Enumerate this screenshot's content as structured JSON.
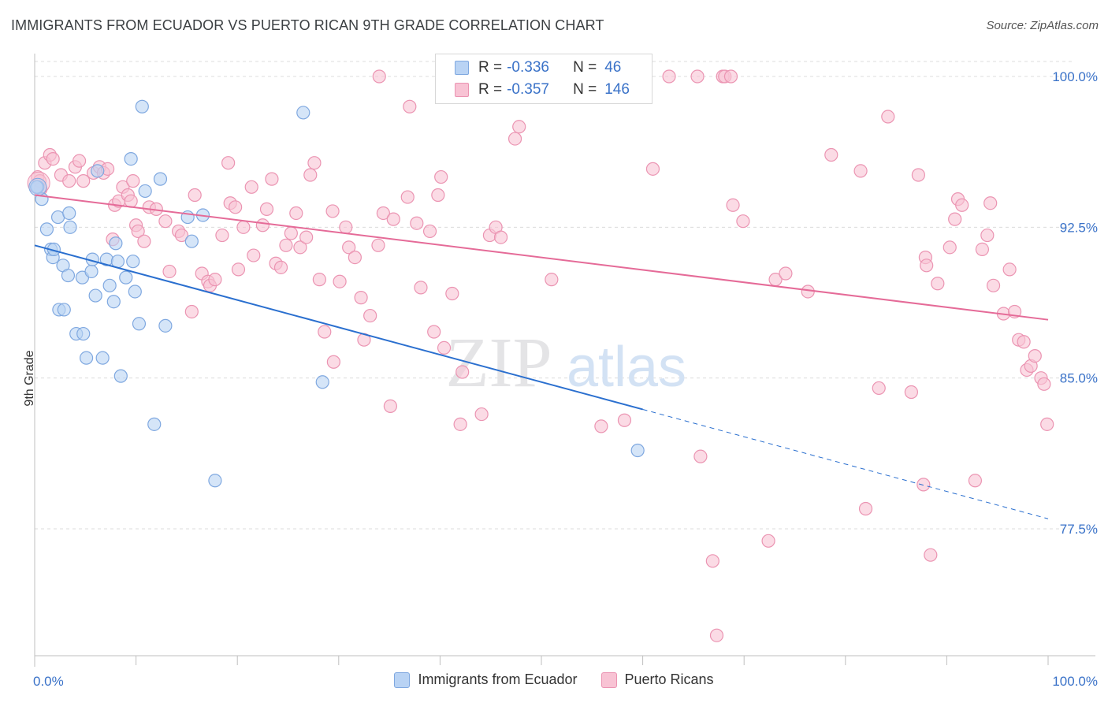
{
  "title": "IMMIGRANTS FROM ECUADOR VS PUERTO RICAN 9TH GRADE CORRELATION CHART",
  "source": "Source: ZipAtlas.com",
  "watermark": {
    "zip": "ZIP",
    "atlas": "atlas"
  },
  "colors": {
    "blue_fill": "#b9d3f4",
    "blue_stroke": "#7fa8e0",
    "blue_line": "#2a6fcf",
    "pink_fill": "#f8c3d4",
    "pink_stroke": "#eb94b2",
    "pink_line": "#e56b98",
    "accent_text": "#3a72c8",
    "grid": "#dcdcdc"
  },
  "legend_top": {
    "r_label": "R =",
    "n_label": "N =",
    "rows": [
      {
        "r": "-0.336",
        "n": "46",
        "color": "blue"
      },
      {
        "r": "-0.357",
        "n": "146",
        "color": "pink"
      }
    ]
  },
  "legend_bottom": [
    "Immigrants from Ecuador",
    "Puerto Ricans"
  ],
  "chart_data": {
    "type": "scatter",
    "xlabel": "",
    "ylabel": "9th Grade",
    "xlim": [
      0,
      100
    ],
    "ylim": [
      70.0,
      101.0
    ],
    "x_tick_labels": [
      {
        "value": 0,
        "label": "0.0%"
      },
      {
        "value": 100,
        "label": "100.0%"
      }
    ],
    "x_minor_ticks": [
      0,
      10,
      20,
      30,
      40,
      50,
      60,
      70,
      80,
      90,
      100
    ],
    "y_ticks": [
      {
        "value": 100.0,
        "label": "100.0%"
      },
      {
        "value": 92.5,
        "label": "92.5%"
      },
      {
        "value": 85.0,
        "label": "85.0%"
      },
      {
        "value": 77.5,
        "label": "77.5%"
      }
    ],
    "grid": true,
    "legend": "top-center",
    "series": [
      {
        "name": "Immigrants from Ecuador",
        "color": "blue",
        "trend": {
          "x_start": 0,
          "y_start": 91.6,
          "x_solid_end": 60,
          "x_end": 100,
          "y_end": 78.0
        },
        "points": [
          [
            0.3,
            94.5
          ],
          [
            0.7,
            93.9
          ],
          [
            1.2,
            92.4
          ],
          [
            1.6,
            91.4
          ],
          [
            1.8,
            91.0
          ],
          [
            1.9,
            91.4
          ],
          [
            2.3,
            93.0
          ],
          [
            2.4,
            88.4
          ],
          [
            2.8,
            90.6
          ],
          [
            2.9,
            88.4
          ],
          [
            3.3,
            90.1
          ],
          [
            3.4,
            93.2
          ],
          [
            3.5,
            92.5
          ],
          [
            4.1,
            87.2
          ],
          [
            4.7,
            90.0
          ],
          [
            4.8,
            87.2
          ],
          [
            5.1,
            86.0
          ],
          [
            5.6,
            90.3
          ],
          [
            5.7,
            90.9
          ],
          [
            6.0,
            89.1
          ],
          [
            6.2,
            95.3
          ],
          [
            6.7,
            86.0
          ],
          [
            7.1,
            90.9
          ],
          [
            7.4,
            89.6
          ],
          [
            7.8,
            88.8
          ],
          [
            8.0,
            91.7
          ],
          [
            8.2,
            90.8
          ],
          [
            8.5,
            85.1
          ],
          [
            9.0,
            90.0
          ],
          [
            9.5,
            95.9
          ],
          [
            9.7,
            90.8
          ],
          [
            9.9,
            89.3
          ],
          [
            10.3,
            87.7
          ],
          [
            10.6,
            98.5
          ],
          [
            10.9,
            94.3
          ],
          [
            11.8,
            82.7
          ],
          [
            12.4,
            94.9
          ],
          [
            12.9,
            87.6
          ],
          [
            15.1,
            93.0
          ],
          [
            15.5,
            91.8
          ],
          [
            16.6,
            93.1
          ],
          [
            17.8,
            79.9
          ],
          [
            26.5,
            98.2
          ],
          [
            28.4,
            84.8
          ],
          [
            59.5,
            81.4
          ],
          [
            0.2,
            94.5
          ]
        ]
      },
      {
        "name": "Puerto Ricans",
        "color": "pink",
        "trend": {
          "x_start": 0,
          "y_start": 94.1,
          "x_end": 100,
          "y_end": 87.9
        },
        "points": [
          [
            0.3,
            95.0
          ],
          [
            0.5,
            94.8
          ],
          [
            0.6,
            94.4
          ],
          [
            1.0,
            95.7
          ],
          [
            1.5,
            96.1
          ],
          [
            1.8,
            95.9
          ],
          [
            2.6,
            95.1
          ],
          [
            3.4,
            94.8
          ],
          [
            4.0,
            95.5
          ],
          [
            4.4,
            95.8
          ],
          [
            4.8,
            94.8
          ],
          [
            5.8,
            95.2
          ],
          [
            6.4,
            95.5
          ],
          [
            6.8,
            95.2
          ],
          [
            7.2,
            95.4
          ],
          [
            7.7,
            91.9
          ],
          [
            7.9,
            93.6
          ],
          [
            8.3,
            93.8
          ],
          [
            8.7,
            94.5
          ],
          [
            9.2,
            94.1
          ],
          [
            9.5,
            93.8
          ],
          [
            9.7,
            94.8
          ],
          [
            10.0,
            92.6
          ],
          [
            10.2,
            92.3
          ],
          [
            10.8,
            91.8
          ],
          [
            11.3,
            93.5
          ],
          [
            12.0,
            93.4
          ],
          [
            12.9,
            92.8
          ],
          [
            13.3,
            90.3
          ],
          [
            14.2,
            92.3
          ],
          [
            14.5,
            92.1
          ],
          [
            15.5,
            88.3
          ],
          [
            15.8,
            94.1
          ],
          [
            16.5,
            90.2
          ],
          [
            17.1,
            89.8
          ],
          [
            17.3,
            89.6
          ],
          [
            17.8,
            89.9
          ],
          [
            18.5,
            92.1
          ],
          [
            19.1,
            95.7
          ],
          [
            19.3,
            93.7
          ],
          [
            19.8,
            93.5
          ],
          [
            20.1,
            90.4
          ],
          [
            20.6,
            92.5
          ],
          [
            21.4,
            94.5
          ],
          [
            21.6,
            91.1
          ],
          [
            22.5,
            92.6
          ],
          [
            22.9,
            93.4
          ],
          [
            23.4,
            94.9
          ],
          [
            23.8,
            90.7
          ],
          [
            24.3,
            90.5
          ],
          [
            24.8,
            91.6
          ],
          [
            25.3,
            92.2
          ],
          [
            25.8,
            93.2
          ],
          [
            26.2,
            91.5
          ],
          [
            26.8,
            92.0
          ],
          [
            27.2,
            95.1
          ],
          [
            27.6,
            95.7
          ],
          [
            28.1,
            89.9
          ],
          [
            28.6,
            87.3
          ],
          [
            29.4,
            93.3
          ],
          [
            29.5,
            85.8
          ],
          [
            30.1,
            89.8
          ],
          [
            30.7,
            92.5
          ],
          [
            31.0,
            91.5
          ],
          [
            31.6,
            91.0
          ],
          [
            32.2,
            89.0
          ],
          [
            32.5,
            86.9
          ],
          [
            33.1,
            88.1
          ],
          [
            33.9,
            91.6
          ],
          [
            34.4,
            93.2
          ],
          [
            35.1,
            83.6
          ],
          [
            35.4,
            92.9
          ],
          [
            34.0,
            100.0
          ],
          [
            37.0,
            98.5
          ],
          [
            36.8,
            94.0
          ],
          [
            37.7,
            92.7
          ],
          [
            38.1,
            89.5
          ],
          [
            39.0,
            92.3
          ],
          [
            39.4,
            87.3
          ],
          [
            39.8,
            94.1
          ],
          [
            40.1,
            95.0
          ],
          [
            40.4,
            86.5
          ],
          [
            41.2,
            89.2
          ],
          [
            42.0,
            82.7
          ],
          [
            42.2,
            85.3
          ],
          [
            44.1,
            83.2
          ],
          [
            44.9,
            92.1
          ],
          [
            45.5,
            92.5
          ],
          [
            46.0,
            92.0
          ],
          [
            47.4,
            96.9
          ],
          [
            47.8,
            97.5
          ],
          [
            48.9,
            100.0
          ],
          [
            50.2,
            100.0
          ],
          [
            51.0,
            89.9
          ],
          [
            53.0,
            100.0
          ],
          [
            55.0,
            100.0
          ],
          [
            56.0,
            100.0
          ],
          [
            55.9,
            82.6
          ],
          [
            58.2,
            82.9
          ],
          [
            61.0,
            95.4
          ],
          [
            62.6,
            100.0
          ],
          [
            65.4,
            100.0
          ],
          [
            65.7,
            81.1
          ],
          [
            66.9,
            75.9
          ],
          [
            67.3,
            72.2
          ],
          [
            67.9,
            100.0
          ],
          [
            68.1,
            100.0
          ],
          [
            68.7,
            100.0
          ],
          [
            68.9,
            93.6
          ],
          [
            69.9,
            92.8
          ],
          [
            72.4,
            76.9
          ],
          [
            73.1,
            89.9
          ],
          [
            74.1,
            90.2
          ],
          [
            76.3,
            89.3
          ],
          [
            78.6,
            96.1
          ],
          [
            81.5,
            95.3
          ],
          [
            82.0,
            78.5
          ],
          [
            83.3,
            84.5
          ],
          [
            84.2,
            98.0
          ],
          [
            86.5,
            84.3
          ],
          [
            87.2,
            95.1
          ],
          [
            87.7,
            79.7
          ],
          [
            87.9,
            91.0
          ],
          [
            88.0,
            90.6
          ],
          [
            88.4,
            76.2
          ],
          [
            89.1,
            89.7
          ],
          [
            90.3,
            91.5
          ],
          [
            90.8,
            92.9
          ],
          [
            91.1,
            93.9
          ],
          [
            91.5,
            93.6
          ],
          [
            92.8,
            79.9
          ],
          [
            93.5,
            91.4
          ],
          [
            94.0,
            92.1
          ],
          [
            94.3,
            93.7
          ],
          [
            94.6,
            89.6
          ],
          [
            95.6,
            88.2
          ],
          [
            96.2,
            90.4
          ],
          [
            96.7,
            88.3
          ],
          [
            97.1,
            86.9
          ],
          [
            97.6,
            86.8
          ],
          [
            97.9,
            85.4
          ],
          [
            98.3,
            85.6
          ],
          [
            98.7,
            86.1
          ],
          [
            99.3,
            85.0
          ],
          [
            99.6,
            84.7
          ],
          [
            99.9,
            82.7
          ]
        ]
      }
    ]
  }
}
